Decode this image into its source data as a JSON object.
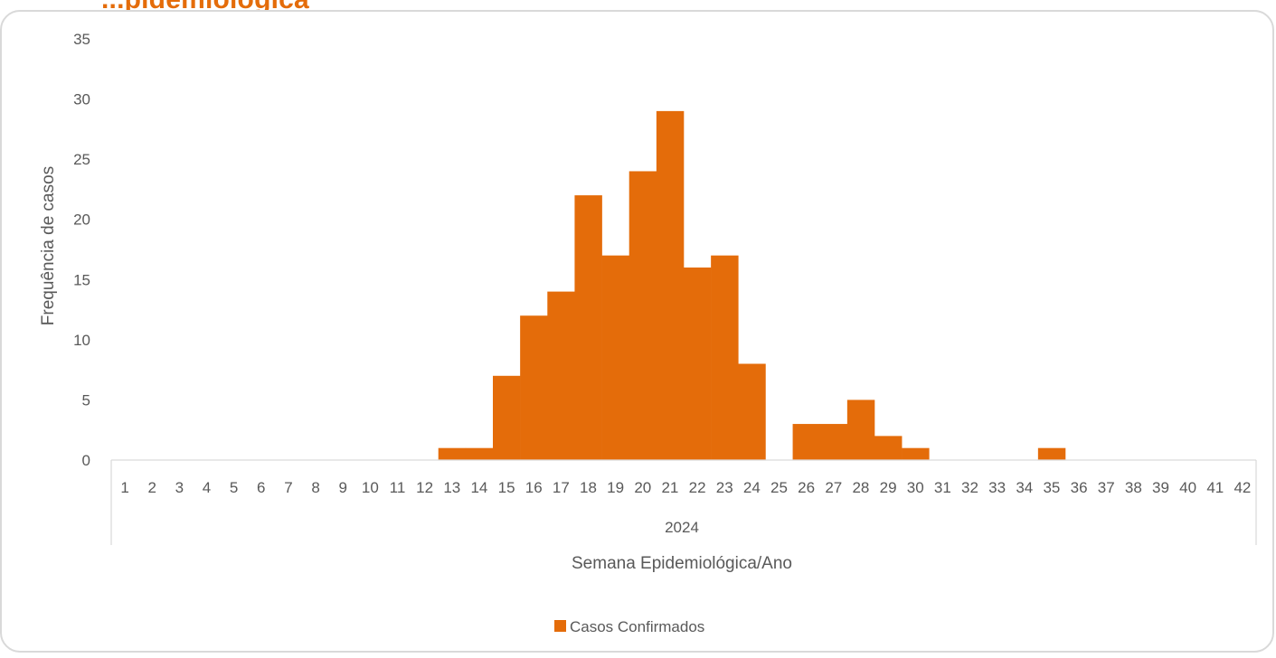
{
  "page": {
    "title": "...pidemiológica"
  },
  "colors": {
    "bar": "#e46c0a",
    "axis_text": "#595959",
    "axis_line": "#d9d9d9",
    "title": "#e46c0a"
  },
  "chart_data": {
    "type": "bar",
    "title": "",
    "xlabel": "Semana Epidemiológica/Ano",
    "ylabel": "Frequência de casos",
    "group_label": "2024",
    "ylim": [
      0,
      35
    ],
    "y_ticks": [
      0,
      5,
      10,
      15,
      20,
      25,
      30,
      35
    ],
    "grid": false,
    "legend": "bottom-center",
    "bar_gap": 0,
    "categories": [
      "1",
      "2",
      "3",
      "4",
      "5",
      "6",
      "7",
      "8",
      "9",
      "10",
      "11",
      "12",
      "13",
      "14",
      "15",
      "16",
      "17",
      "18",
      "19",
      "20",
      "21",
      "22",
      "23",
      "24",
      "25",
      "26",
      "27",
      "28",
      "29",
      "30",
      "31",
      "32",
      "33",
      "34",
      "35",
      "36",
      "37",
      "38",
      "39",
      "40",
      "41",
      "42"
    ],
    "series": [
      {
        "name": "Casos Confirmados",
        "color": "#e46c0a",
        "values": [
          0,
          0,
          0,
          0,
          0,
          0,
          0,
          0,
          0,
          0,
          0,
          0,
          1,
          1,
          7,
          12,
          14,
          22,
          17,
          24,
          29,
          16,
          17,
          8,
          0,
          3,
          3,
          5,
          2,
          1,
          0,
          0,
          0,
          0,
          1,
          0,
          0,
          0,
          0,
          0,
          0,
          0
        ]
      }
    ]
  }
}
